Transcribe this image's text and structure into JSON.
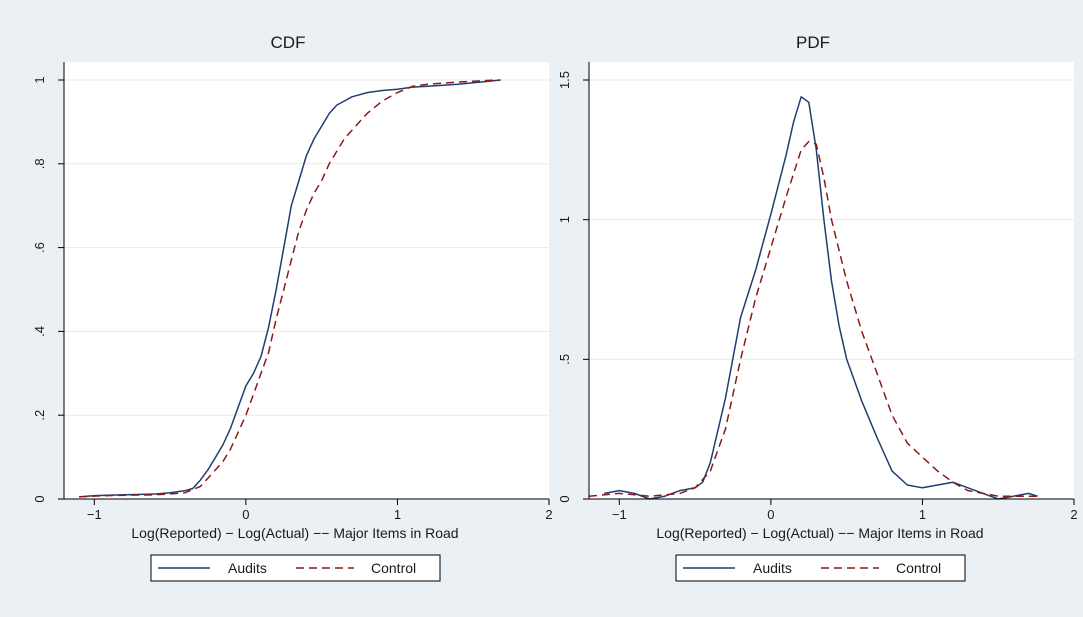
{
  "figure": {
    "background": "#eaf0f3",
    "series_colors": {
      "Audits": "#1f3f6e",
      "Control": "#8b1a1a"
    }
  },
  "chart_data": [
    {
      "type": "line",
      "title": "CDF",
      "xlabel": "Log(Reported) − Log(Actual) −− Major Items in Road",
      "ylabel": "",
      "xlim": [
        -1.2,
        2.0
      ],
      "ylim": [
        0,
        1
      ],
      "xticks": [
        -1,
        0,
        1,
        2
      ],
      "xtick_labels": [
        "−1",
        "0",
        "1",
        "2"
      ],
      "yticks": [
        0,
        0.2,
        0.4,
        0.6,
        0.8,
        1
      ],
      "ytick_labels": [
        "0",
        ".2",
        ".4",
        ".6",
        ".8",
        "1"
      ],
      "grid": true,
      "legend": "bottom",
      "series": [
        {
          "name": "Audits",
          "style": "solid",
          "color": "#1f3f6e",
          "x": [
            -1.1,
            -1.0,
            -0.8,
            -0.6,
            -0.5,
            -0.4,
            -0.35,
            -0.3,
            -0.25,
            -0.2,
            -0.15,
            -0.1,
            -0.05,
            0.0,
            0.05,
            0.1,
            0.15,
            0.2,
            0.25,
            0.3,
            0.35,
            0.4,
            0.45,
            0.5,
            0.55,
            0.6,
            0.65,
            0.7,
            0.8,
            0.9,
            1.0,
            1.1,
            1.2,
            1.4,
            1.6,
            1.68
          ],
          "y": [
            0.005,
            0.008,
            0.01,
            0.012,
            0.015,
            0.02,
            0.025,
            0.045,
            0.07,
            0.1,
            0.13,
            0.17,
            0.22,
            0.27,
            0.3,
            0.34,
            0.41,
            0.5,
            0.6,
            0.7,
            0.76,
            0.82,
            0.86,
            0.89,
            0.92,
            0.94,
            0.95,
            0.96,
            0.97,
            0.975,
            0.978,
            0.983,
            0.985,
            0.99,
            0.997,
            1.0
          ]
        },
        {
          "name": "Control",
          "style": "dashed",
          "color": "#8b1a1a",
          "x": [
            -1.1,
            -1.0,
            -0.8,
            -0.6,
            -0.5,
            -0.4,
            -0.3,
            -0.25,
            -0.2,
            -0.15,
            -0.1,
            -0.05,
            0.0,
            0.05,
            0.1,
            0.15,
            0.2,
            0.25,
            0.3,
            0.35,
            0.4,
            0.45,
            0.5,
            0.55,
            0.6,
            0.65,
            0.7,
            0.75,
            0.8,
            0.9,
            1.0,
            1.1,
            1.2,
            1.4,
            1.6,
            1.68
          ],
          "y": [
            0.005,
            0.007,
            0.009,
            0.01,
            0.012,
            0.015,
            0.03,
            0.05,
            0.07,
            0.09,
            0.12,
            0.16,
            0.2,
            0.25,
            0.3,
            0.35,
            0.43,
            0.5,
            0.57,
            0.64,
            0.69,
            0.73,
            0.76,
            0.8,
            0.83,
            0.86,
            0.88,
            0.9,
            0.92,
            0.95,
            0.97,
            0.985,
            0.99,
            0.995,
            0.999,
            1.0
          ]
        }
      ]
    },
    {
      "type": "line",
      "title": "PDF",
      "xlabel": "Log(Reported) − Log(Actual) −− Major Items in Road",
      "ylabel": "",
      "xlim": [
        -1.2,
        2.0
      ],
      "ylim": [
        0,
        1.5
      ],
      "xticks": [
        -1,
        0,
        1,
        2
      ],
      "xtick_labels": [
        "−1",
        "0",
        "1",
        "2"
      ],
      "yticks": [
        0,
        0.5,
        1,
        1.5
      ],
      "ytick_labels": [
        "0",
        ".5",
        "1",
        "1.5"
      ],
      "grid": true,
      "legend": "bottom",
      "series": [
        {
          "name": "Audits",
          "style": "solid",
          "color": "#1f3f6e",
          "x": [
            -1.1,
            -1.0,
            -0.9,
            -0.8,
            -0.7,
            -0.6,
            -0.5,
            -0.45,
            -0.4,
            -0.3,
            -0.2,
            -0.1,
            0.0,
            0.1,
            0.15,
            0.2,
            0.25,
            0.3,
            0.35,
            0.4,
            0.45,
            0.5,
            0.6,
            0.7,
            0.8,
            0.9,
            1.0,
            1.1,
            1.2,
            1.3,
            1.4,
            1.5,
            1.6,
            1.7,
            1.76
          ],
          "y": [
            0.02,
            0.03,
            0.02,
            0.0,
            0.01,
            0.03,
            0.04,
            0.06,
            0.13,
            0.36,
            0.65,
            0.82,
            1.02,
            1.23,
            1.35,
            1.44,
            1.42,
            1.25,
            1.0,
            0.78,
            0.62,
            0.5,
            0.35,
            0.22,
            0.1,
            0.05,
            0.04,
            0.05,
            0.06,
            0.04,
            0.02,
            0.0,
            0.01,
            0.02,
            0.01
          ]
        },
        {
          "name": "Control",
          "style": "dashed",
          "color": "#8b1a1a",
          "x": [
            -1.2,
            -1.0,
            -0.8,
            -0.6,
            -0.5,
            -0.4,
            -0.3,
            -0.2,
            -0.1,
            0.0,
            0.1,
            0.2,
            0.25,
            0.3,
            0.35,
            0.4,
            0.5,
            0.6,
            0.7,
            0.8,
            0.9,
            1.0,
            1.1,
            1.2,
            1.3,
            1.4,
            1.5,
            1.6,
            1.76
          ],
          "y": [
            0.01,
            0.02,
            0.01,
            0.02,
            0.04,
            0.1,
            0.25,
            0.5,
            0.72,
            0.9,
            1.08,
            1.25,
            1.28,
            1.27,
            1.15,
            1.0,
            0.78,
            0.6,
            0.45,
            0.3,
            0.2,
            0.15,
            0.1,
            0.06,
            0.03,
            0.02,
            0.01,
            0.01,
            0.01
          ]
        }
      ]
    }
  ]
}
